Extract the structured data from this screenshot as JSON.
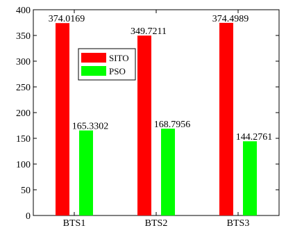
{
  "chart_data": {
    "type": "bar",
    "title": "",
    "xlabel": "",
    "ylabel": "",
    "categories": [
      "BTS1",
      "BTS2",
      "BTS3"
    ],
    "series": [
      {
        "name": "SITO",
        "color": "#ff0000",
        "values": [
          374.0169,
          349.7211,
          374.4989
        ],
        "labels": [
          "374.0169",
          "349.7211",
          "374.4989"
        ]
      },
      {
        "name": "PSO",
        "color": "#00ff00",
        "values": [
          165.3302,
          168.7956,
          144.2761
        ],
        "labels": [
          "165.3302",
          "168.7956",
          "144.2761"
        ]
      }
    ],
    "ylim": [
      0,
      400
    ],
    "yticks": [
      0,
      50,
      100,
      150,
      200,
      250,
      300,
      350,
      400
    ],
    "grid": false,
    "legend_position": "top-left"
  }
}
